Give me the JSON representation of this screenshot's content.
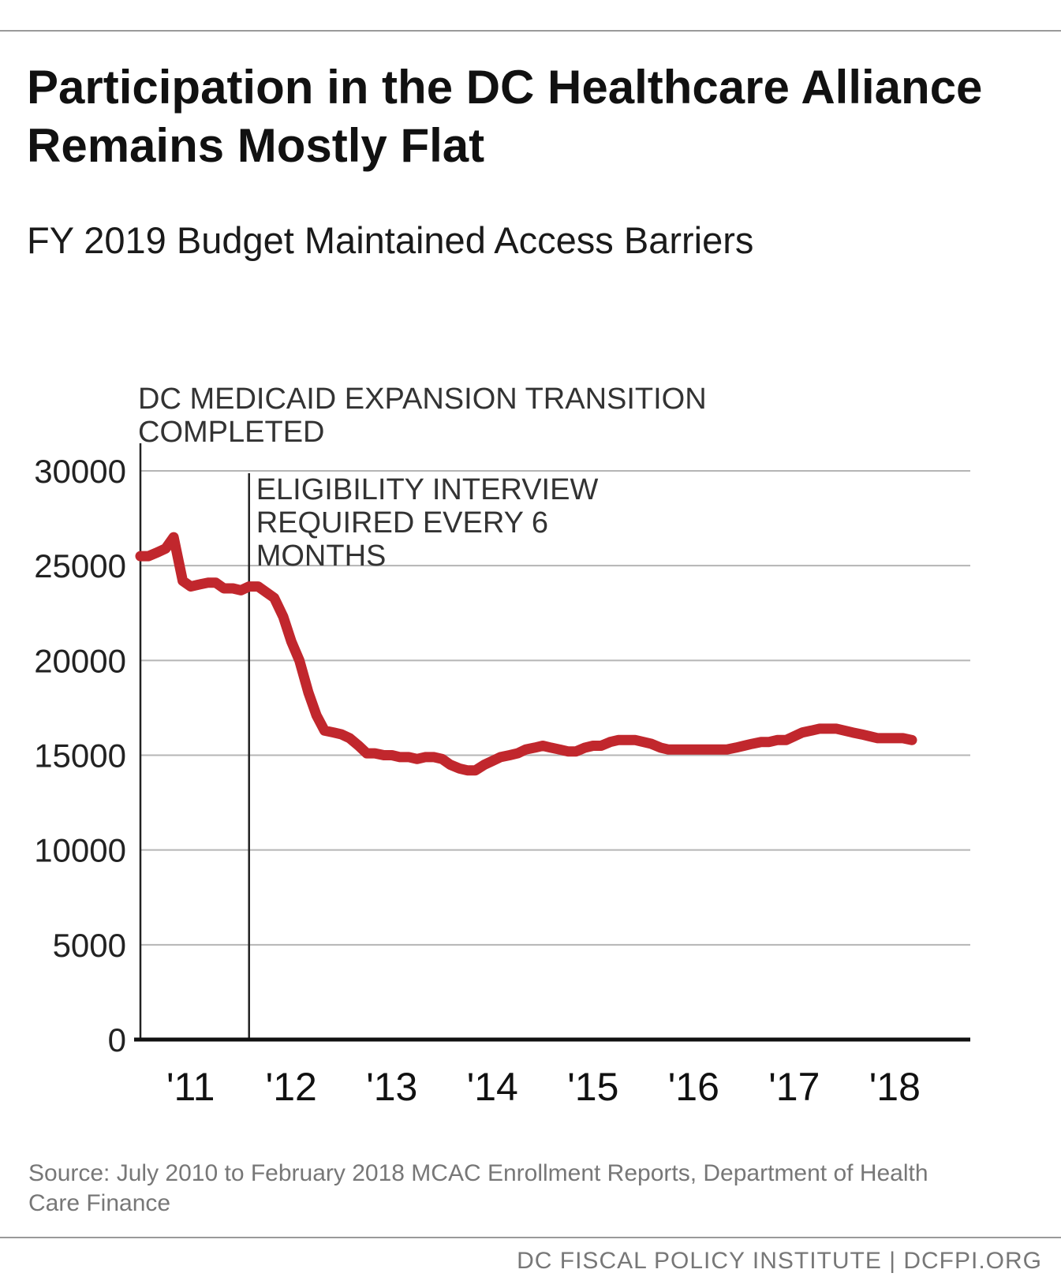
{
  "header": {
    "title": "Participation in the DC Healthcare Alliance Remains Mostly Flat",
    "subtitle": "FY 2019 Budget Maintained Access Barriers"
  },
  "footer": {
    "source": "Source: July 2010 to February 2018 MCAC Enrollment Reports, Department of Health Care Finance",
    "credit": "DC FISCAL POLICY INSTITUTE | DCFPI.ORG"
  },
  "chart_data": {
    "type": "line",
    "title": "Participation in the DC Healthcare Alliance Remains Mostly Flat",
    "subtitle": "FY 2019 Budget Maintained Access Barriers",
    "xlabel": "",
    "ylabel": "",
    "ylim": [
      0,
      30000
    ],
    "yticks": [
      "0",
      "5000",
      "10000",
      "15000",
      "20000",
      "25000",
      "30000"
    ],
    "xticks": [
      "'11",
      "'12",
      "'13",
      "'14",
      "'15",
      "'16",
      "'17",
      "'18"
    ],
    "grid": true,
    "series_color": "#c1272d",
    "series": [
      {
        "x": [
          2010.5,
          2010.58,
          2010.67,
          2010.75,
          2010.83,
          2010.92,
          2011.0,
          2011.08,
          2011.17,
          2011.25,
          2011.33,
          2011.42,
          2011.5,
          2011.58,
          2011.67,
          2011.75,
          2011.83,
          2011.92,
          2012.0,
          2012.08,
          2012.17,
          2012.25,
          2012.33,
          2012.42,
          2012.5,
          2012.58,
          2012.67,
          2012.75,
          2012.83,
          2012.92,
          2013.0,
          2013.08,
          2013.17,
          2013.25,
          2013.33,
          2013.42,
          2013.5,
          2013.58,
          2013.67,
          2013.75,
          2013.83,
          2013.92,
          2014.0,
          2014.08,
          2014.17,
          2014.25,
          2014.33,
          2014.42,
          2014.5,
          2014.58,
          2014.67,
          2014.75,
          2014.83,
          2014.92,
          2015.0,
          2015.08,
          2015.17,
          2015.25,
          2015.33,
          2015.42,
          2015.5,
          2015.58,
          2015.67,
          2015.75,
          2015.83,
          2015.92,
          2016.0,
          2016.08,
          2016.17,
          2016.25,
          2016.33,
          2016.42,
          2016.5,
          2016.58,
          2016.67,
          2016.75,
          2016.83,
          2016.92,
          2017.0,
          2017.08,
          2017.17,
          2017.25,
          2017.33,
          2017.42,
          2017.5,
          2017.58,
          2017.67,
          2017.75,
          2017.83,
          2017.92,
          2018.0,
          2018.08,
          2018.17
        ],
        "y": [
          25500,
          25500,
          25700,
          25900,
          26500,
          24200,
          23900,
          24000,
          24100,
          24100,
          23800,
          23800,
          23700,
          23900,
          23900,
          23600,
          23300,
          22300,
          21000,
          20000,
          18300,
          17100,
          16300,
          16200,
          16100,
          15900,
          15500,
          15100,
          15100,
          15000,
          15000,
          14900,
          14900,
          14800,
          14900,
          14900,
          14800,
          14500,
          14300,
          14200,
          14200,
          14500,
          14700,
          14900,
          15000,
          15100,
          15300,
          15400,
          15500,
          15400,
          15300,
          15200,
          15200,
          15400,
          15500,
          15500,
          15700,
          15800,
          15800,
          15800,
          15700,
          15600,
          15400,
          15300,
          15300,
          15300,
          15300,
          15300,
          15300,
          15300,
          15300,
          15400,
          15500,
          15600,
          15700,
          15700,
          15800,
          15800,
          16000,
          16200,
          16300,
          16400,
          16400,
          16400,
          16300,
          16200,
          16100,
          16000,
          15900,
          15900,
          15900,
          15900,
          15800
        ]
      }
    ],
    "annotations": [
      {
        "x": 2010.5,
        "lines": [
          "DC MEDICAID EXPANSION TRANSITION",
          "COMPLETED"
        ]
      },
      {
        "x": 2011.58,
        "lines": [
          "ELIGIBILITY INTERVIEW",
          "REQUIRED EVERY 6",
          "MONTHS"
        ]
      }
    ]
  }
}
